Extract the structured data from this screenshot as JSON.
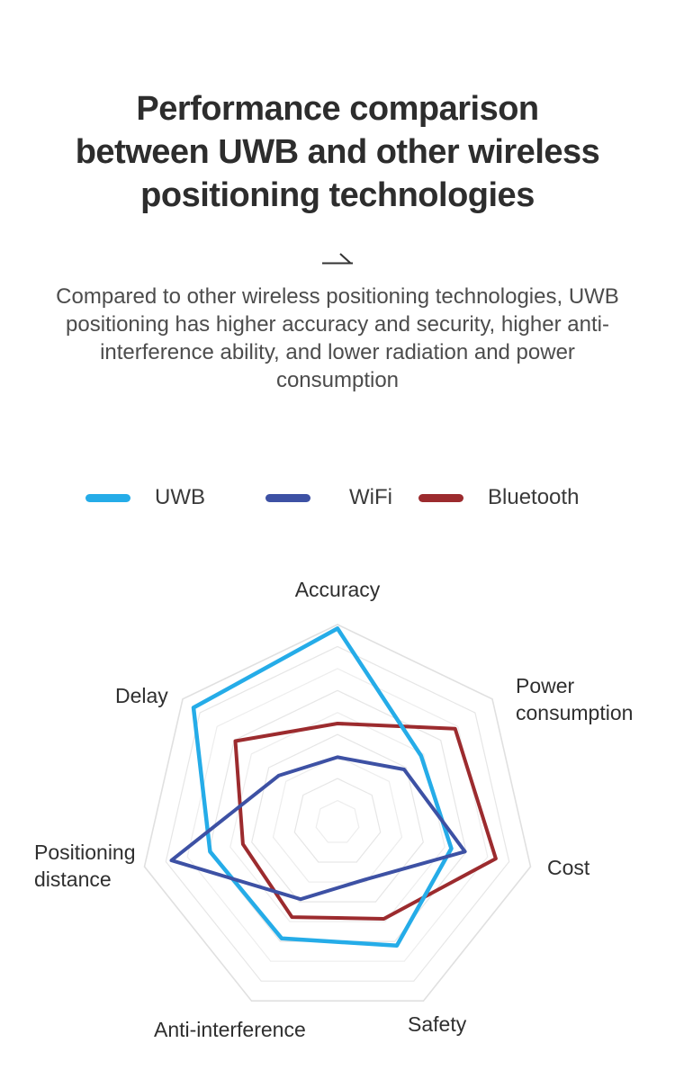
{
  "page": {
    "title_lines": [
      "Performance comparison",
      "between UWB and other wireless",
      "positioning technologies"
    ],
    "description": "Compared to other wireless positioning technologies, UWB positioning has higher accuracy and security, higher anti-interference ability, and lower radiation and power consumption",
    "colors": {
      "title": "#2d2d2d",
      "description": "#4c4c4c",
      "grid_line": "#e8e8e8",
      "background": "#ffffff"
    }
  },
  "chart_data": {
    "type": "radar",
    "axes": [
      "Accuracy",
      "Power consumption",
      "Cost",
      "Safety",
      "Anti-interference",
      "Positioning distance",
      "Delay"
    ],
    "max": 10,
    "rings": 9,
    "grid": true,
    "legend_position": "top",
    "series": [
      {
        "name": "UWB",
        "color": "#25ACE8",
        "values": [
          9.8,
          5.4,
          5.9,
          6.9,
          6.5,
          6.6,
          9.3
        ]
      },
      {
        "name": "WiFi",
        "color": "#3D51A4",
        "values": [
          3.3,
          4.3,
          6.6,
          3.2,
          4.3,
          8.6,
          3.8
        ]
      },
      {
        "name": "Bluetooth",
        "color": "#9C2B2E",
        "values": [
          5.0,
          7.6,
          8.2,
          5.4,
          5.3,
          4.9,
          6.6
        ]
      }
    ]
  }
}
